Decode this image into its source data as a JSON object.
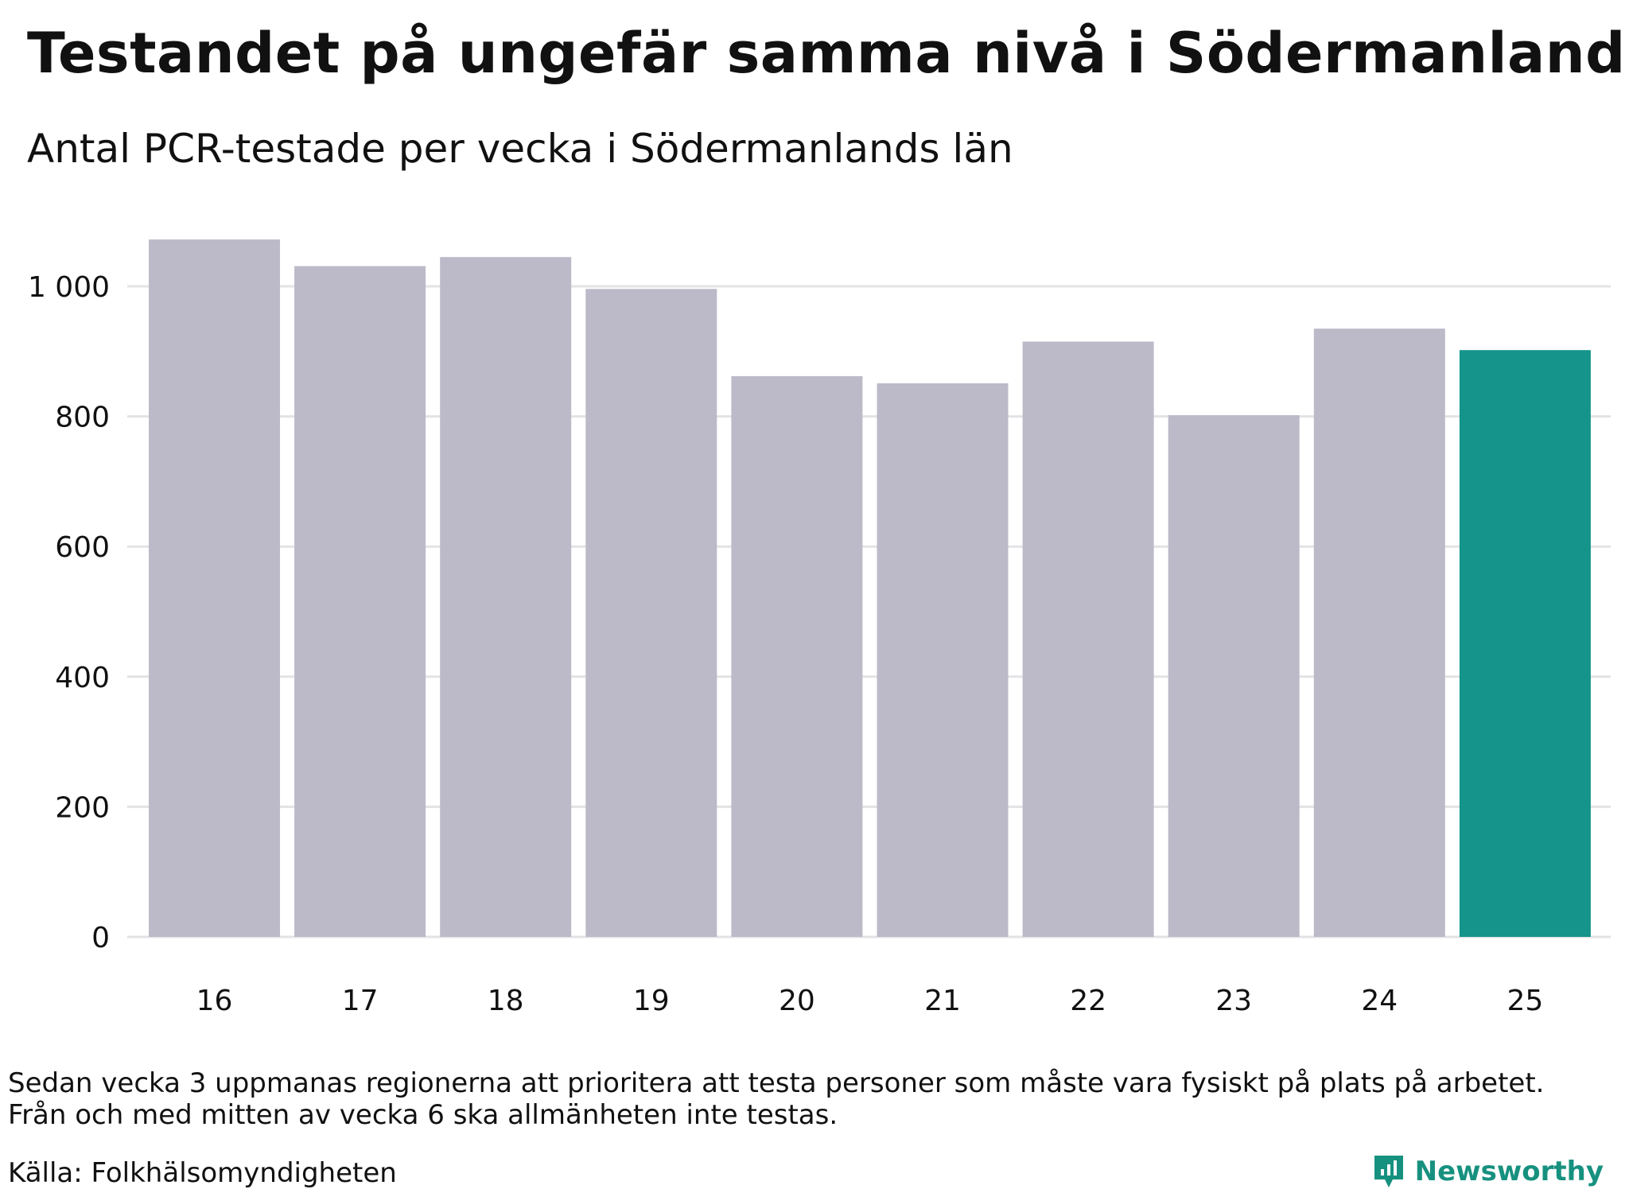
{
  "title": "Testandet på ungefär samma nivå i Södermanland",
  "subtitle": "Antal PCR-testade per vecka i Södermanlands län",
  "note": {
    "line1": "Sedan vecka 3 uppmanas regionerna att prioritera att testa personer som måste vara fysiskt på plats på arbetet.",
    "line2": "Från och med mitten av vecka 6 ska allmänheten inte testas."
  },
  "source": "Källa: Folkhälsomyndigheten",
  "brand": "Newsworthy",
  "colors": {
    "bar": "#bcbac8",
    "highlight": "#14948a",
    "grid": "#e3e3e6",
    "brand": "#17917f"
  },
  "chart_data": {
    "type": "bar",
    "title": "Testandet på ungefär samma nivå i Södermanland",
    "subtitle": "Antal PCR-testade per vecka i Södermanlands län",
    "xlabel": "",
    "ylabel": "",
    "categories": [
      "16",
      "17",
      "18",
      "19",
      "20",
      "21",
      "22",
      "23",
      "24",
      "25"
    ],
    "values": [
      1072,
      1031,
      1045,
      996,
      862,
      851,
      915,
      802,
      935,
      902
    ],
    "highlight_category": "25",
    "ylim": [
      0,
      1100
    ],
    "yticks": [
      0,
      200,
      400,
      600,
      800,
      1000
    ],
    "ytick_labels": [
      "0",
      "200",
      "400",
      "600",
      "800",
      "1 000"
    ],
    "grid": true,
    "legend": "none"
  }
}
